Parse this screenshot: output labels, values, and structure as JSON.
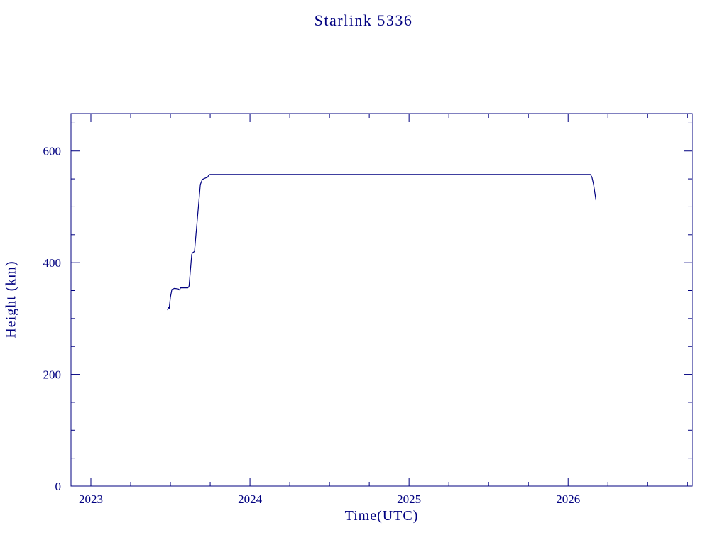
{
  "chart": {
    "title": "Starlink 5336",
    "xlabel": "Time(UTC)",
    "ylabel": "Height (km)"
  },
  "chart_data": {
    "type": "line",
    "title": "Starlink 5336",
    "xlabel": "Time(UTC)",
    "ylabel": "Height (km)",
    "legend": "none",
    "grid": false,
    "line_color": "#000080",
    "frame_color": "#000080",
    "xlim": [
      2022.875,
      2026.78
    ],
    "ylim": [
      0,
      667
    ],
    "x_major_ticks": [
      2023,
      2024,
      2025,
      2026
    ],
    "x_tick_labels": [
      "2023",
      "2024",
      "2025",
      "2026"
    ],
    "x_minor_step": 0.25,
    "y_major_ticks": [
      0,
      200,
      400,
      600
    ],
    "y_tick_labels": [
      "0",
      "200",
      "400",
      "600"
    ],
    "y_minor_step": 50,
    "series": [
      {
        "name": "height_km",
        "points": [
          [
            2023.482,
            315
          ],
          [
            2023.487,
            320
          ],
          [
            2023.492,
            318
          ],
          [
            2023.5,
            338
          ],
          [
            2023.509,
            352
          ],
          [
            2023.525,
            354
          ],
          [
            2023.55,
            353
          ],
          [
            2023.558,
            351
          ],
          [
            2023.563,
            355
          ],
          [
            2023.61,
            355
          ],
          [
            2023.617,
            358
          ],
          [
            2023.634,
            415
          ],
          [
            2023.64,
            418
          ],
          [
            2023.647,
            419
          ],
          [
            2023.652,
            422
          ],
          [
            2023.688,
            540
          ],
          [
            2023.7,
            549
          ],
          [
            2023.715,
            551
          ],
          [
            2023.733,
            553
          ],
          [
            2023.742,
            557
          ],
          [
            2023.75,
            558
          ],
          [
            2026.14,
            558
          ],
          [
            2026.15,
            553
          ],
          [
            2026.16,
            540
          ],
          [
            2026.175,
            512
          ]
        ]
      }
    ]
  }
}
